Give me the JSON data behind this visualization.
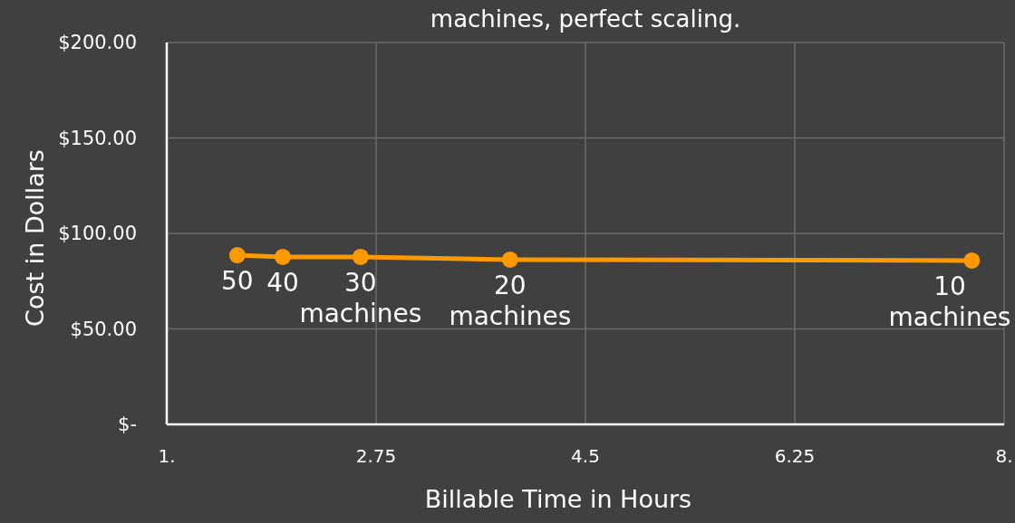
{
  "chart_data": {
    "type": "line",
    "title": "machines, perfect scaling.",
    "xlabel": "Billable Time in Hours",
    "ylabel": "Cost in Dollars",
    "x": [
      1.59,
      1.97,
      2.62,
      3.87,
      7.73
    ],
    "series": [
      {
        "color": "#ff9900",
        "values": [
          88.6,
          87.7,
          87.7,
          86.3,
          85.8
        ]
      }
    ],
    "xlim": [
      1,
      8
    ],
    "xticks": [
      {
        "value": 1,
        "label": "1."
      },
      2.75,
      4.5,
      6.25,
      {
        "value": 8,
        "label": "8."
      }
    ],
    "ylim": [
      0,
      200
    ],
    "yticks": [
      {
        "value": 0,
        "label": "$-"
      },
      {
        "value": 50,
        "label": "$50.00"
      },
      {
        "value": 100,
        "label": "$100.00"
      },
      {
        "value": 150,
        "label": "$150.00"
      },
      {
        "value": 200,
        "label": "$200.00"
      }
    ],
    "grid": true,
    "marker": "circle",
    "line_style": "solid",
    "annotations": [
      {
        "text": "50",
        "x": 1.59,
        "y": 88.6
      },
      {
        "text": "40",
        "x": 1.97,
        "y": 87.7
      },
      {
        "text": "30\nmachines",
        "x": 2.62,
        "y": 87.7
      },
      {
        "text": "20\nmachines",
        "x": 3.87,
        "y": 86.3
      },
      {
        "text": "10\nmachines",
        "x": 7.73,
        "y": 85.8
      }
    ]
  }
}
